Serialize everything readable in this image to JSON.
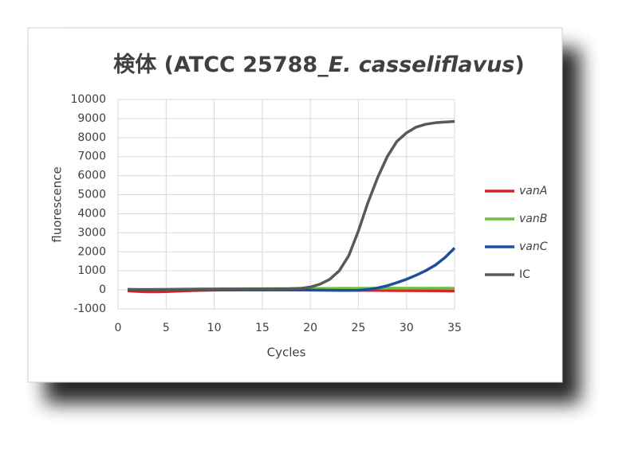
{
  "chart_data": {
    "type": "line",
    "title": [
      "検体 (ATCC 25788_",
      "E. casseliflavus",
      ")"
    ],
    "xlabel": "Cycles",
    "ylabel": "fluorescence",
    "x": [
      1,
      2,
      3,
      4,
      5,
      6,
      7,
      8,
      9,
      10,
      11,
      12,
      13,
      14,
      15,
      16,
      17,
      18,
      19,
      20,
      21,
      22,
      23,
      24,
      25,
      26,
      27,
      28,
      29,
      30,
      31,
      32,
      33,
      34,
      35
    ],
    "series": [
      {
        "name": "vanA",
        "color": "#d62728",
        "italic": true,
        "values": [
          -50,
          -80,
          -100,
          -100,
          -90,
          -70,
          -50,
          -35,
          -20,
          -10,
          -5,
          0,
          0,
          0,
          0,
          0,
          0,
          0,
          0,
          0,
          0,
          -5,
          -10,
          -15,
          -20,
          -25,
          -30,
          -35,
          -40,
          -40,
          -45,
          -45,
          -50,
          -55,
          -60
        ]
      },
      {
        "name": "vanB",
        "color": "#6cbf3a",
        "italic": true,
        "values": [
          20,
          20,
          25,
          30,
          30,
          35,
          40,
          45,
          50,
          50,
          55,
          55,
          60,
          60,
          60,
          65,
          65,
          70,
          70,
          70,
          75,
          75,
          80,
          80,
          80,
          85,
          85,
          85,
          90,
          90,
          90,
          90,
          85,
          85,
          80
        ]
      },
      {
        "name": "vanC",
        "color": "#1f4e9c",
        "italic": true,
        "values": [
          0,
          -5,
          -5,
          0,
          0,
          0,
          0,
          0,
          0,
          0,
          0,
          0,
          0,
          0,
          0,
          0,
          0,
          0,
          -5,
          -10,
          -15,
          -20,
          -25,
          -25,
          -20,
          20,
          100,
          220,
          380,
          560,
          770,
          1010,
          1300,
          1700,
          2200
        ]
      },
      {
        "name": "IC",
        "color": "#595959",
        "italic": false,
        "values": [
          30,
          20,
          15,
          15,
          20,
          25,
          30,
          35,
          40,
          40,
          45,
          45,
          45,
          50,
          50,
          50,
          55,
          60,
          80,
          150,
          300,
          550,
          1000,
          1800,
          3100,
          4600,
          5900,
          7000,
          7800,
          8250,
          8550,
          8700,
          8780,
          8820,
          8850
        ]
      }
    ],
    "xlim": [
      0,
      35
    ],
    "xticks": [
      0,
      5,
      10,
      15,
      20,
      25,
      30,
      35
    ],
    "ylim": [
      -1000,
      10000
    ],
    "yticks": [
      -1000,
      0,
      1000,
      2000,
      3000,
      4000,
      5000,
      6000,
      7000,
      8000,
      9000,
      10000
    ],
    "grid": true,
    "legend": "right"
  }
}
